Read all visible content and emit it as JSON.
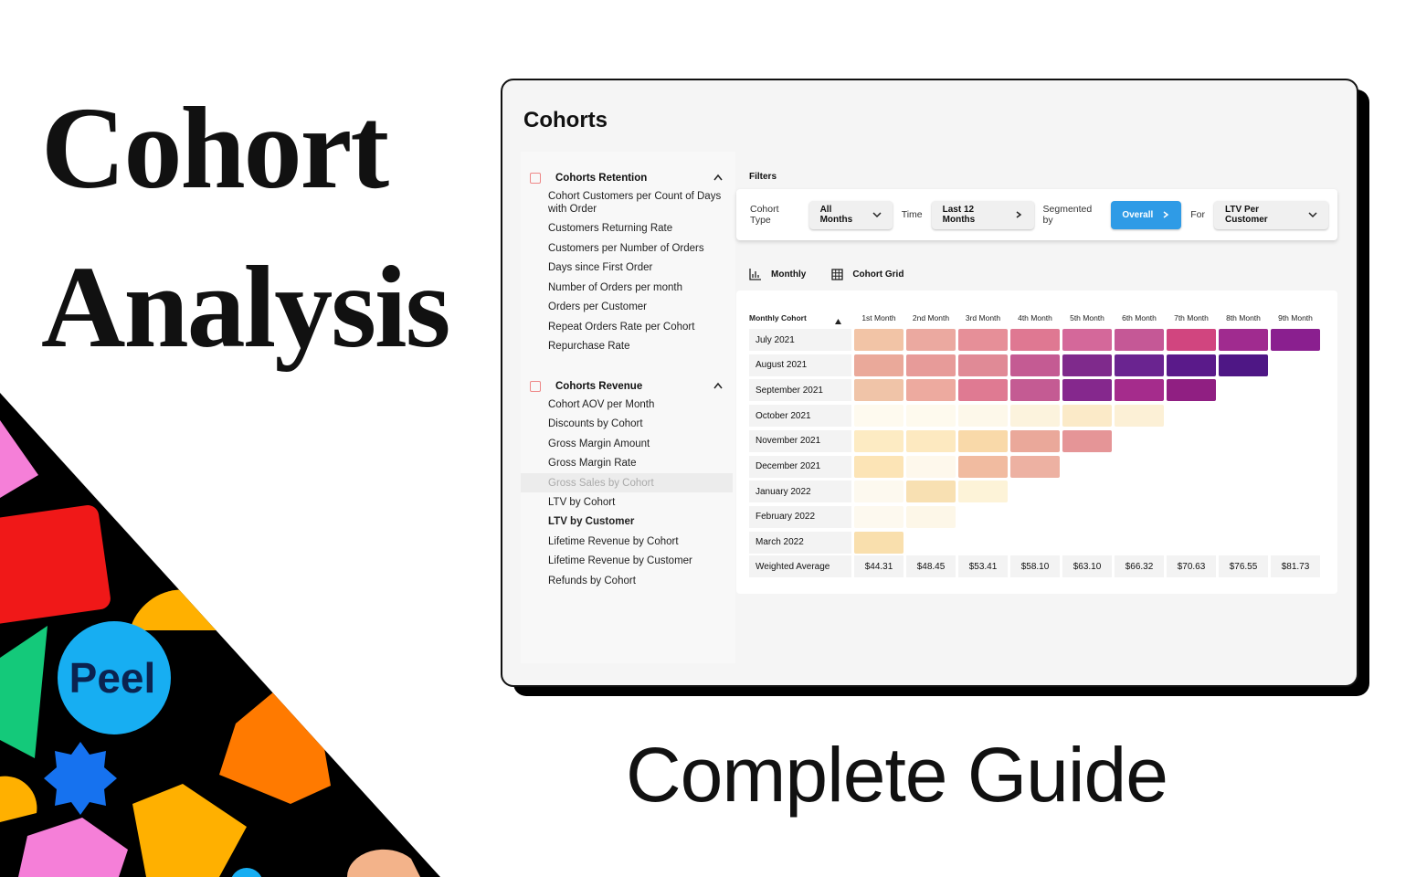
{
  "headline": {
    "line1": "Cohort",
    "line2": "Analysis",
    "subtitle": "Complete Guide",
    "logo": "Peel"
  },
  "app": {
    "title": "Cohorts",
    "sidebar": {
      "sections": [
        {
          "title": "Cohorts Retention",
          "items": [
            "Cohort Customers per Count of Days with Order",
            "Customers Returning Rate",
            "Customers per Number of Orders",
            "Days since First Order",
            "Number of Orders per month",
            "Orders per Customer",
            "Repeat Orders Rate per Cohort",
            "Repurchase Rate"
          ]
        },
        {
          "title": "Cohorts Revenue",
          "items": [
            "Cohort AOV per Month",
            "Discounts by Cohort",
            "Gross Margin Amount",
            "Gross Margin Rate",
            "Gross Sales by Cohort",
            "LTV by Cohort",
            "LTV by Customer",
            "Lifetime Revenue by Cohort",
            "Lifetime Revenue by Customer",
            "Refunds by Cohort"
          ]
        }
      ]
    },
    "filters": {
      "title": "Filters",
      "items": [
        {
          "label": "Cohort Type",
          "value": "All Months"
        },
        {
          "label": "Time",
          "value": "Last 12 Months"
        },
        {
          "label": "Segmented by",
          "value": "Overall"
        },
        {
          "label": "For",
          "value": "LTV Per Customer"
        }
      ]
    },
    "tabs": [
      "Monthly",
      "Cohort Grid"
    ],
    "table": {
      "header": "Monthly Cohort",
      "columns": [
        "1st Month",
        "2nd Month",
        "3rd Month",
        "4th Month",
        "5th Month",
        "6th Month",
        "7th Month",
        "8th Month",
        "9th Month"
      ],
      "rows": [
        {
          "label": "July 2021",
          "cells": [
            "#f2c4a6",
            "#eba9a0",
            "#e68f98",
            "#df7892",
            "#d4689a",
            "#c55896",
            "#d1457f",
            "#a02b8f",
            "#8a1f8f"
          ]
        },
        {
          "label": "August 2021",
          "cells": [
            "#eaa99a",
            "#e79b99",
            "#e08a96",
            "#c45b93",
            "#7f2a8c",
            "#6a2490",
            "#5a1a8a",
            "#4e1785"
          ]
        },
        {
          "label": "September 2021",
          "cells": [
            "#f0c4a8",
            "#edaa9f",
            "#df7a92",
            "#c45b93",
            "#85288d",
            "#a52c8c",
            "#901f82"
          ]
        },
        {
          "label": "October 2021",
          "cells": [
            "#fefaef",
            "#fefaee",
            "#fdf8ea",
            "#fcf3dd",
            "#fbeac8",
            "#fcf0d6"
          ]
        },
        {
          "label": "November 2021",
          "cells": [
            "#fdebc3",
            "#fde9c0",
            "#f9d9a9",
            "#eaa89a",
            "#e59597"
          ]
        },
        {
          "label": "December 2021",
          "cells": [
            "#fce4b6",
            "#fef8ec",
            "#f1bba0",
            "#edb1a2"
          ]
        },
        {
          "label": "January 2022",
          "cells": [
            "#fdf9ef",
            "#f8e0b2",
            "#fdf3d8"
          ]
        },
        {
          "label": "February 2022",
          "cells": [
            "#fdf9ef",
            "#fdf7e8"
          ]
        },
        {
          "label": "March 2022",
          "cells": [
            "#f9dfad"
          ]
        }
      ],
      "average": {
        "label": "Weighted Average",
        "values": [
          "$44.31",
          "$48.45",
          "$53.41",
          "$58.10",
          "$63.10",
          "$66.32",
          "$70.63",
          "$76.55",
          "$81.73"
        ]
      }
    }
  }
}
